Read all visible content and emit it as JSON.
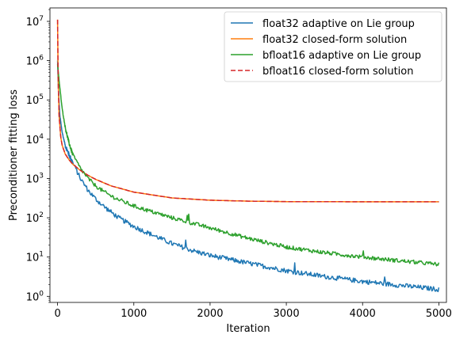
{
  "chart_data": {
    "type": "line",
    "title": "",
    "xlabel": "Iteration",
    "ylabel": "Preconditioner fitting loss",
    "xlim": [
      -100,
      5100
    ],
    "ylim": [
      0.7,
      22000000.0
    ],
    "yscale": "log",
    "x_ticks": [
      {
        "value": 0,
        "label": "0"
      },
      {
        "value": 1000,
        "label": "1000"
      },
      {
        "value": 2000,
        "label": "2000"
      },
      {
        "value": 3000,
        "label": "3000"
      },
      {
        "value": 4000,
        "label": "4000"
      },
      {
        "value": 5000,
        "label": "5000"
      }
    ],
    "y_ticks": [
      {
        "value": 1,
        "base": "10",
        "exp": "0"
      },
      {
        "value": 10,
        "base": "10",
        "exp": "1"
      },
      {
        "value": 100,
        "base": "10",
        "exp": "2"
      },
      {
        "value": 1000,
        "base": "10",
        "exp": "3"
      },
      {
        "value": 10000,
        "base": "10",
        "exp": "4"
      },
      {
        "value": 100000,
        "base": "10",
        "exp": "5"
      },
      {
        "value": 1000000,
        "base": "10",
        "exp": "6"
      },
      {
        "value": 10000000,
        "base": "10",
        "exp": "7"
      }
    ],
    "grid": false,
    "legend_position": "top-right",
    "series": [
      {
        "name": "float32 adaptive on Lie group",
        "color": "#1f77b4",
        "style": "solid",
        "noise": 0.06,
        "x": [
          0,
          10,
          30,
          60,
          100,
          150,
          200,
          300,
          400,
          500,
          600,
          700,
          800,
          1000,
          1200,
          1500,
          1800,
          2000,
          2500,
          3000,
          3500,
          4000,
          4500,
          5000
        ],
        "y": [
          1000000,
          200000,
          40000,
          15000,
          7000,
          4000,
          2500,
          1000,
          500,
          300,
          200,
          140,
          100,
          60,
          40,
          22,
          14,
          11,
          7,
          4.5,
          3.2,
          2.4,
          1.9,
          1.5
        ]
      },
      {
        "name": "float32 closed-form solution",
        "color": "#ff7f0e",
        "style": "solid",
        "noise": 0,
        "x": [
          0,
          5,
          10,
          20,
          40,
          60,
          100,
          150,
          200,
          300,
          400,
          500,
          700,
          1000,
          1500,
          2000,
          2500,
          3000,
          4000,
          5000
        ],
        "y": [
          11000000,
          1000000,
          200000,
          40000,
          12000,
          7000,
          4200,
          3000,
          2300,
          1600,
          1200,
          950,
          650,
          450,
          320,
          280,
          265,
          258,
          255,
          255
        ]
      },
      {
        "name": "bfloat16 adaptive on Lie group",
        "color": "#2ca02c",
        "style": "solid",
        "noise": 0.05,
        "x": [
          0,
          10,
          30,
          60,
          100,
          150,
          200,
          300,
          400,
          500,
          600,
          700,
          800,
          1000,
          1200,
          1500,
          1800,
          2000,
          2500,
          3000,
          3500,
          4000,
          4500,
          5000
        ],
        "y": [
          800000,
          500000,
          200000,
          60000,
          20000,
          8000,
          4000,
          1800,
          1000,
          650,
          470,
          360,
          290,
          200,
          150,
          100,
          70,
          55,
          30,
          18,
          13,
          10,
          8,
          6.5
        ]
      },
      {
        "name": "bfloat16 closed-form solution",
        "color": "#d62728",
        "style": "dashed",
        "noise": 0,
        "x": [
          0,
          5,
          10,
          20,
          40,
          60,
          100,
          150,
          200,
          300,
          400,
          500,
          700,
          1000,
          1500,
          2000,
          2500,
          3000,
          4000,
          5000
        ],
        "y": [
          11000000,
          1000000,
          200000,
          40000,
          12000,
          7000,
          4200,
          3000,
          2300,
          1600,
          1200,
          950,
          650,
          450,
          320,
          280,
          265,
          258,
          255,
          255
        ]
      }
    ]
  }
}
